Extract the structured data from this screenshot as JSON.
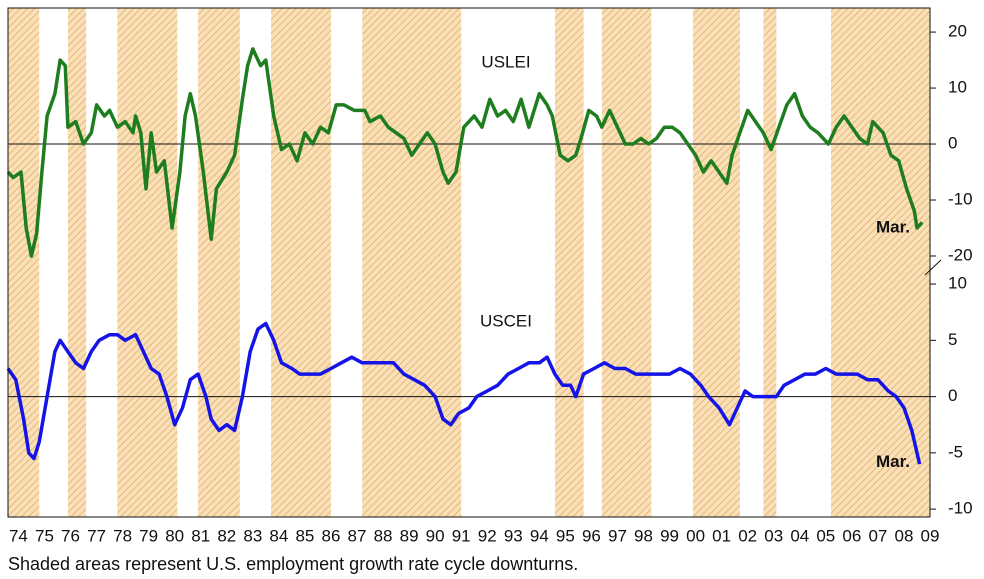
{
  "caption": "Shaded areas represent U.S. employment growth rate cycle downturns.",
  "shaded_periods": [
    [
      1974.1,
      1975.3
    ],
    [
      1976.4,
      1977.1
    ],
    [
      1978.3,
      1980.6
    ],
    [
      1981.4,
      1983.0
    ],
    [
      1984.2,
      1986.5
    ],
    [
      1987.7,
      1991.5
    ],
    [
      1995.1,
      1996.2
    ],
    [
      1996.9,
      1998.8
    ],
    [
      2000.4,
      2002.2
    ],
    [
      2003.1,
      2003.6
    ],
    [
      2005.7,
      2009.5
    ]
  ],
  "chart_data": [
    {
      "type": "line",
      "annotation": "Mar.",
      "xlim": [
        1974.1,
        2009.5
      ],
      "ylim": [
        -22.5,
        24.3
      ],
      "yticks": [
        20,
        10,
        0,
        -10,
        -20
      ],
      "x": [
        1974.1,
        1974.3,
        1974.6,
        1974.8,
        1975.0,
        1975.2,
        1975.4,
        1975.6,
        1975.9,
        1976.1,
        1976.3,
        1976.4,
        1976.7,
        1977.0,
        1977.3,
        1977.5,
        1977.8,
        1978.0,
        1978.3,
        1978.6,
        1978.9,
        1979.0,
        1979.2,
        1979.4,
        1979.6,
        1979.8,
        1980.1,
        1980.4,
        1980.7,
        1980.9,
        1981.1,
        1981.3,
        1981.6,
        1981.9,
        1982.1,
        1982.5,
        1982.8,
        1983.1,
        1983.3,
        1983.5,
        1983.8,
        1984.0,
        1984.3,
        1984.6,
        1984.9,
        1985.2,
        1985.5,
        1985.8,
        1986.1,
        1986.4,
        1986.7,
        1987.0,
        1987.4,
        1987.8,
        1988.0,
        1988.4,
        1988.7,
        1989.0,
        1989.3,
        1989.6,
        1989.9,
        1990.2,
        1990.5,
        1990.8,
        1991.0,
        1991.3,
        1991.6,
        1992.0,
        1992.3,
        1992.6,
        1992.9,
        1993.2,
        1993.5,
        1993.8,
        1994.1,
        1994.5,
        1994.8,
        1995.0,
        1995.3,
        1995.6,
        1995.9,
        1996.1,
        1996.4,
        1996.7,
        1996.9,
        1997.2,
        1997.5,
        1997.8,
        1998.1,
        1998.4,
        1998.7,
        1999.0,
        1999.3,
        1999.6,
        1999.9,
        2000.2,
        2000.5,
        2000.8,
        2001.1,
        2001.4,
        2001.7,
        2001.9,
        2002.2,
        2002.5,
        2002.8,
        2003.1,
        2003.4,
        2003.7,
        2004.0,
        2004.3,
        2004.6,
        2004.9,
        2005.2,
        2005.6,
        2005.9,
        2006.2,
        2006.5,
        2006.8,
        2007.1,
        2007.3,
        2007.7,
        2008.0,
        2008.3,
        2008.6,
        2008.9,
        2009.0,
        2009.2
      ],
      "series": [
        {
          "name": "USLEI",
          "color": "#1e7d1e",
          "values": [
            -5,
            -6,
            -5,
            -15,
            -20,
            -16,
            -5,
            5,
            9,
            15,
            14,
            3,
            4,
            0,
            2,
            7,
            5,
            6,
            3,
            4,
            2,
            5,
            2,
            -8,
            2,
            -5,
            -3,
            -15,
            -5,
            5,
            9,
            5,
            -5,
            -17,
            -8,
            -5,
            -2,
            8,
            14,
            17,
            14,
            15,
            5,
            -1,
            0,
            -3,
            2,
            0,
            3,
            2,
            7,
            7,
            6,
            6,
            4,
            5,
            3,
            2,
            1,
            -2,
            0,
            2,
            0,
            -5,
            -7,
            -5,
            3,
            5,
            3,
            8,
            5,
            6,
            4,
            8,
            3,
            9,
            7,
            5,
            -2,
            -3,
            -2,
            1,
            6,
            5,
            3,
            6,
            3,
            0,
            0,
            1,
            0,
            1,
            3,
            3,
            2,
            0,
            -2,
            -5,
            -3,
            -5,
            -7,
            -2,
            2,
            6,
            4,
            2,
            -1,
            3,
            7,
            9,
            5,
            3,
            2,
            0,
            3,
            5,
            3,
            1,
            0,
            4,
            2,
            -2,
            -3,
            -8,
            -12,
            -15,
            -14
          ]
        }
      ]
    },
    {
      "type": "line",
      "annotation": "Mar.",
      "xlim": [
        1974.1,
        2009.5
      ],
      "ylim": [
        -10.7,
        11.25
      ],
      "yticks": [
        10,
        5,
        0,
        -5,
        -10
      ],
      "xticks": [
        {
          "value": 1974.5,
          "label": "74"
        },
        {
          "value": 1975.5,
          "label": "75"
        },
        {
          "value": 1976.5,
          "label": "76"
        },
        {
          "value": 1977.5,
          "label": "77"
        },
        {
          "value": 1978.5,
          "label": "78"
        },
        {
          "value": 1979.5,
          "label": "79"
        },
        {
          "value": 1980.5,
          "label": "80"
        },
        {
          "value": 1981.5,
          "label": "81"
        },
        {
          "value": 1982.5,
          "label": "82"
        },
        {
          "value": 1983.5,
          "label": "83"
        },
        {
          "value": 1984.5,
          "label": "84"
        },
        {
          "value": 1985.5,
          "label": "85"
        },
        {
          "value": 1986.5,
          "label": "86"
        },
        {
          "value": 1987.5,
          "label": "87"
        },
        {
          "value": 1988.5,
          "label": "88"
        },
        {
          "value": 1989.5,
          "label": "89"
        },
        {
          "value": 1990.5,
          "label": "90"
        },
        {
          "value": 1991.5,
          "label": "91"
        },
        {
          "value": 1992.5,
          "label": "92"
        },
        {
          "value": 1993.5,
          "label": "93"
        },
        {
          "value": 1994.5,
          "label": "94"
        },
        {
          "value": 1995.5,
          "label": "95"
        },
        {
          "value": 1996.5,
          "label": "96"
        },
        {
          "value": 1997.5,
          "label": "97"
        },
        {
          "value": 1998.5,
          "label": "98"
        },
        {
          "value": 1999.5,
          "label": "99"
        },
        {
          "value": 2000.5,
          "label": "00"
        },
        {
          "value": 2001.5,
          "label": "01"
        },
        {
          "value": 2002.5,
          "label": "02"
        },
        {
          "value": 2003.5,
          "label": "03"
        },
        {
          "value": 2004.5,
          "label": "04"
        },
        {
          "value": 2005.5,
          "label": "05"
        },
        {
          "value": 2006.5,
          "label": "06"
        },
        {
          "value": 2007.5,
          "label": "07"
        },
        {
          "value": 2008.5,
          "label": "08"
        },
        {
          "value": 2009.5,
          "label": "09"
        }
      ],
      "x": [
        1974.1,
        1974.4,
        1974.7,
        1974.9,
        1975.1,
        1975.3,
        1975.6,
        1975.9,
        1976.1,
        1976.4,
        1976.7,
        1977.0,
        1977.3,
        1977.6,
        1978.0,
        1978.3,
        1978.6,
        1979.0,
        1979.3,
        1979.6,
        1979.9,
        1980.2,
        1980.5,
        1980.8,
        1981.1,
        1981.4,
        1981.7,
        1981.9,
        1982.2,
        1982.5,
        1982.8,
        1983.1,
        1983.4,
        1983.7,
        1984.0,
        1984.3,
        1984.6,
        1985.0,
        1985.3,
        1985.7,
        1986.1,
        1986.5,
        1986.9,
        1987.3,
        1987.7,
        1988.1,
        1988.5,
        1988.9,
        1989.3,
        1989.7,
        1990.1,
        1990.5,
        1990.8,
        1991.1,
        1991.4,
        1991.8,
        1992.1,
        1992.5,
        1992.9,
        1993.3,
        1993.7,
        1994.1,
        1994.5,
        1994.8,
        1995.1,
        1995.4,
        1995.7,
        1995.9,
        1996.2,
        1996.6,
        1997.0,
        1997.4,
        1997.8,
        1998.2,
        1998.6,
        1999.0,
        1999.5,
        1999.9,
        2000.3,
        2000.7,
        2001.0,
        2001.4,
        2001.8,
        2002.1,
        2002.4,
        2002.7,
        2003.0,
        2003.3,
        2003.6,
        2003.9,
        2004.3,
        2004.7,
        2005.1,
        2005.5,
        2005.9,
        2006.3,
        2006.7,
        2007.1,
        2007.5,
        2007.9,
        2008.2,
        2008.5,
        2008.8,
        2009.0,
        2009.1
      ],
      "series": [
        {
          "name": "USCEI",
          "color": "#1414e6",
          "values": [
            2.5,
            1.5,
            -2,
            -5,
            -5.5,
            -4,
            0,
            4,
            5,
            4,
            3,
            2.5,
            4,
            5,
            5.5,
            5.5,
            5,
            5.5,
            4,
            2.5,
            2,
            0,
            -2.5,
            -1,
            1.5,
            2,
            0,
            -2,
            -3,
            -2.5,
            -3,
            0,
            4,
            6,
            6.5,
            5,
            3,
            2.5,
            2,
            2,
            2,
            2.5,
            3,
            3.5,
            3,
            3,
            3,
            3,
            2,
            1.5,
            1,
            0,
            -2,
            -2.5,
            -1.5,
            -1,
            0,
            0.5,
            1,
            2,
            2.5,
            3,
            3,
            3.5,
            2,
            1,
            1,
            0,
            2,
            2.5,
            3,
            2.5,
            2.5,
            2,
            2,
            2,
            2,
            2.5,
            2,
            1,
            0,
            -1,
            -2.5,
            -1,
            0.5,
            0,
            0,
            0,
            0,
            1,
            1.5,
            2,
            2,
            2.5,
            2,
            2,
            2,
            1.5,
            1.5,
            0.5,
            0,
            -1,
            -3,
            -5,
            -6
          ]
        }
      ]
    }
  ]
}
